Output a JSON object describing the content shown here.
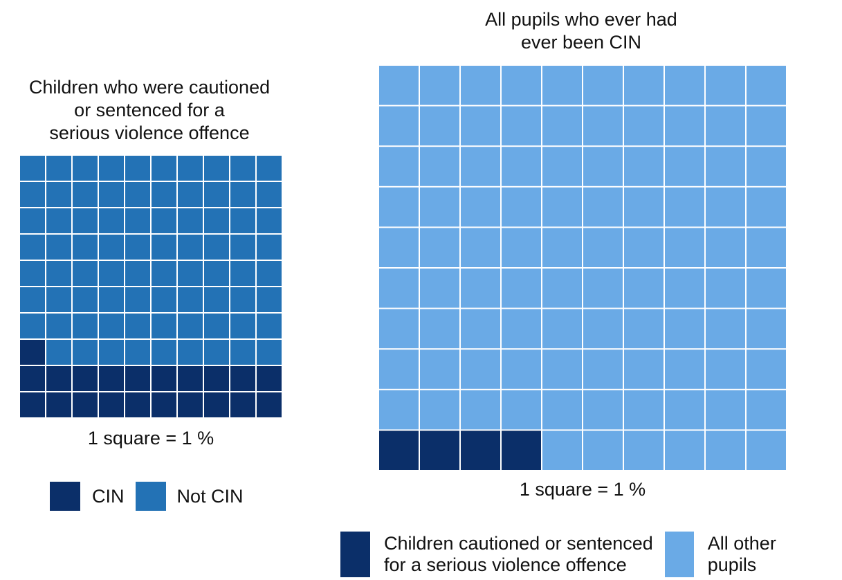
{
  "colors": {
    "dark": "#0b2f69",
    "mid": "#2372b5",
    "light": "#6aaae6",
    "gridline": "#ffffff"
  },
  "chart_data": [
    {
      "type": "waffle",
      "title_lines": [
        "Children who were cautioned",
        "or sentenced for a",
        "serious violence offence"
      ],
      "caption": "1 square = 1 %",
      "grid": {
        "rows": 10,
        "cols": 10
      },
      "series": [
        {
          "name": "CIN",
          "value": 21,
          "color": "#0b2f69"
        },
        {
          "name": "Not CIN",
          "value": 79,
          "color": "#2372b5"
        }
      ],
      "legend": [
        {
          "label": "CIN",
          "color": "#0b2f69"
        },
        {
          "label": "Not CIN",
          "color": "#2372b5"
        }
      ]
    },
    {
      "type": "waffle",
      "title_lines": [
        "All pupils who ever had",
        "ever been CIN"
      ],
      "caption": "1 square = 1 %",
      "grid": {
        "rows": 10,
        "cols": 10
      },
      "series": [
        {
          "name": "Children cautioned or sentenced for a serious violence offence",
          "value": 4,
          "color": "#0b2f69"
        },
        {
          "name": "All other pupils",
          "value": 96,
          "color": "#6aaae6"
        }
      ],
      "legend": [
        {
          "label_lines": [
            "Children cautioned or sentenced",
            "for a serious violence offence"
          ],
          "color": "#0b2f69"
        },
        {
          "label_lines": [
            "All other",
            "pupils"
          ],
          "color": "#6aaae6"
        }
      ]
    }
  ]
}
